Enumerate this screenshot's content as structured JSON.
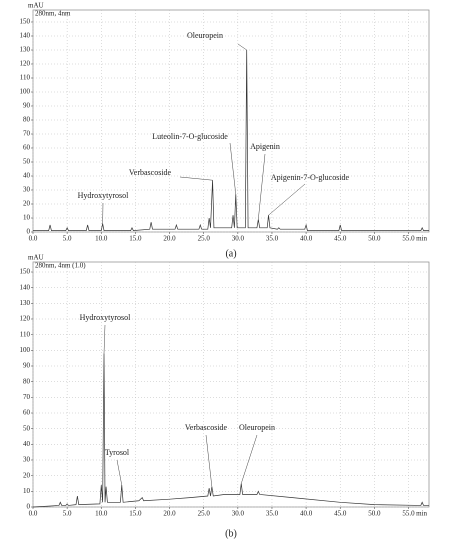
{
  "chart_data": [
    {
      "type": "line",
      "subtitle": "280nm, 4nm",
      "y_label": "mAU",
      "x_label": "min",
      "caption": "(a)",
      "color": "#333333",
      "grid": true,
      "xlim": [
        0,
        58
      ],
      "ylim": [
        0,
        150
      ],
      "xticks": [
        {
          "value": 0,
          "label": "0.0"
        },
        {
          "value": 5,
          "label": "5.0"
        },
        {
          "value": 10,
          "label": "10.0"
        },
        {
          "value": 15,
          "label": "15.0"
        },
        {
          "value": 20,
          "label": "20.0"
        },
        {
          "value": 25,
          "label": "25.0"
        },
        {
          "value": 30,
          "label": "30.0"
        },
        {
          "value": 35,
          "label": "35.0"
        },
        {
          "value": 40,
          "label": "40.0"
        },
        {
          "value": 45,
          "label": "45.0"
        },
        {
          "value": 50,
          "label": "50.0"
        },
        {
          "value": 55,
          "label": "55.0"
        }
      ],
      "yticks": [
        0,
        10,
        20,
        30,
        40,
        50,
        60,
        70,
        80,
        90,
        100,
        110,
        120,
        130,
        140,
        150
      ],
      "x": [
        0,
        2.3,
        2.5,
        2.7,
        4.8,
        5,
        5.2,
        7.8,
        8,
        8.2,
        10,
        10.2,
        10.4,
        14.3,
        14.5,
        14.7,
        17.1,
        17.3,
        17.5,
        20.8,
        21,
        21.2,
        24.3,
        24.5,
        24.7,
        25.6,
        25.8,
        26,
        26.3,
        26.5,
        29.1,
        29.3,
        29.5,
        29.7,
        29.9,
        31.1,
        31.3,
        31.5,
        32.8,
        33,
        33.2,
        34.3,
        34.5,
        34.7,
        35.8,
        36,
        36.2,
        39.8,
        40,
        40.2,
        44.8,
        45,
        45.2,
        56.8,
        57,
        57.2,
        58
      ],
      "values": [
        1,
        1,
        5,
        1,
        1,
        3,
        1,
        1,
        5,
        1,
        1,
        6,
        1,
        1,
        3,
        1,
        2,
        7,
        2,
        2,
        5,
        2,
        2,
        5,
        2,
        2,
        10,
        3,
        37,
        3,
        3,
        12,
        3,
        27,
        3,
        3,
        130,
        3,
        3,
        9,
        3,
        3,
        12,
        3,
        2,
        3,
        2,
        2,
        5,
        1,
        1,
        5,
        1,
        1,
        3,
        1,
        1
      ],
      "annotations": [
        {
          "text": "Hydroxytyrosol",
          "x": 10.2,
          "y": 6
        },
        {
          "text": "Verbascoside",
          "x": 26.3,
          "y": 37
        },
        {
          "text": "Luteolin-7-O-glucoside",
          "x": 29.7,
          "y": 27
        },
        {
          "text": "Oleuropein",
          "x": 31.3,
          "y": 130
        },
        {
          "text": "Apigenin",
          "x": 33,
          "y": 9
        },
        {
          "text": "Apigenin-7-O-glucoside",
          "x": 34.5,
          "y": 12
        }
      ]
    },
    {
      "type": "line",
      "subtitle": "280nm, 4nm (1.0)",
      "y_label": "mAU",
      "x_label": "min",
      "caption": "(b)",
      "color": "#333333",
      "grid": true,
      "xlim": [
        0,
        58
      ],
      "ylim": [
        0,
        150
      ],
      "xticks": [
        {
          "value": 0,
          "label": "0.0"
        },
        {
          "value": 5,
          "label": "5.0"
        },
        {
          "value": 10,
          "label": "10.0"
        },
        {
          "value": 15,
          "label": "15.0"
        },
        {
          "value": 20,
          "label": "20.0"
        },
        {
          "value": 25,
          "label": "25.0"
        },
        {
          "value": 30,
          "label": "30.0"
        },
        {
          "value": 35,
          "label": "35.0"
        },
        {
          "value": 40,
          "label": "40.0"
        },
        {
          "value": 45,
          "label": "45.0"
        },
        {
          "value": 50,
          "label": "50.0"
        },
        {
          "value": 55,
          "label": "55.0"
        }
      ],
      "yticks": [
        0,
        10,
        20,
        30,
        40,
        50,
        60,
        70,
        80,
        90,
        100,
        110,
        120,
        130,
        140,
        150
      ],
      "x": [
        0,
        2,
        3.8,
        4,
        4.2,
        4.8,
        5,
        5.2,
        6.3,
        6.5,
        6.7,
        9.8,
        10,
        10.2,
        10.4,
        10.55,
        10.7,
        10.9,
        12.8,
        13,
        13.2,
        15.5,
        16,
        16.2,
        20,
        23,
        25.6,
        25.8,
        26,
        26.2,
        26.4,
        28,
        30.3,
        30.5,
        30.7,
        32.8,
        33,
        33.2,
        38,
        45,
        50,
        56.8,
        57,
        57.2,
        58
      ],
      "values": [
        0,
        0.5,
        1,
        3,
        1,
        1,
        2,
        1,
        1.5,
        7,
        1.5,
        2,
        14,
        3,
        98,
        3,
        13,
        3,
        3,
        14,
        3,
        4,
        6,
        4,
        5,
        6,
        7,
        12,
        7,
        13,
        7,
        8,
        8,
        15,
        8,
        8,
        10,
        8,
        6,
        3,
        1.5,
        1,
        3,
        1,
        1
      ],
      "annotations": [
        {
          "text": "Hydroxytyrosol",
          "x": 10.4,
          "y": 98
        },
        {
          "text": "Tyrosol",
          "x": 13,
          "y": 14
        },
        {
          "text": "Verbascoside",
          "x": 26.2,
          "y": 13
        },
        {
          "text": "Oleuropein",
          "x": 30.5,
          "y": 15
        }
      ]
    }
  ]
}
